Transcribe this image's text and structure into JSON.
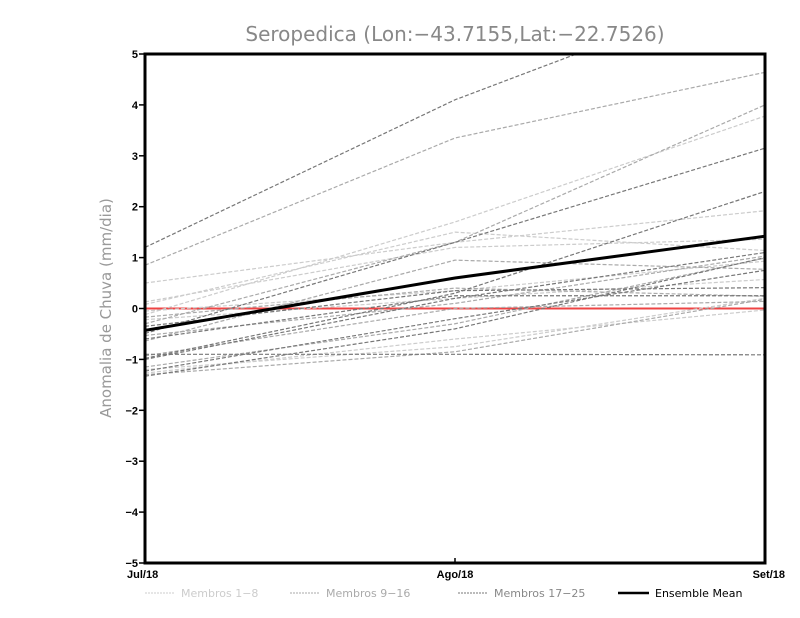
{
  "chart_data": {
    "type": "line",
    "title": "Seropedica (Lon:−43.7155,Lat:−22.7526)",
    "xlabel": "",
    "ylabel": "Anomalia de Chuva (mm/dia)",
    "categories": [
      "Jul/18",
      "Ago/18",
      "Set/18"
    ],
    "ylim": [
      -5,
      5
    ],
    "yticks": [
      "−5",
      "−4",
      "−3",
      "−2",
      "−1",
      "0",
      "1",
      "2",
      "3",
      "4",
      "5"
    ],
    "ytick_values": [
      -5,
      -4,
      -3,
      -2,
      -1,
      0,
      1,
      2,
      3,
      4,
      5
    ],
    "reference_line": {
      "value": 0,
      "color": "#ee4444"
    },
    "groups": [
      {
        "name": "Membros 1−8",
        "color": "#cccccc"
      },
      {
        "name": "Membros 9−16",
        "color": "#aaaaaa"
      },
      {
        "name": "Membros 17−25",
        "color": "#777777"
      }
    ],
    "series": [
      {
        "member": 1,
        "group": 0,
        "values": [
          -0.12,
          1.7,
          3.78
        ]
      },
      {
        "member": 2,
        "group": 0,
        "values": [
          0.5,
          1.3,
          1.92
        ]
      },
      {
        "member": 3,
        "group": 0,
        "values": [
          0.08,
          1.5,
          1.14
        ]
      },
      {
        "member": 4,
        "group": 0,
        "values": [
          -1.2,
          -0.75,
          0.2
        ]
      },
      {
        "member": 5,
        "group": 0,
        "values": [
          -1.27,
          -0.6,
          -0.03
        ]
      },
      {
        "member": 6,
        "group": 0,
        "values": [
          0.13,
          1.2,
          1.36
        ]
      },
      {
        "member": 7,
        "group": 0,
        "values": [
          -0.22,
          0.2,
          0.57
        ]
      },
      {
        "member": 8,
        "group": 0,
        "values": [
          -0.05,
          0.35,
          0.93
        ]
      },
      {
        "member": 9,
        "group": 1,
        "values": [
          0.85,
          3.35,
          4.64
        ]
      },
      {
        "member": 10,
        "group": 1,
        "values": [
          -0.3,
          1.3,
          4.0
        ]
      },
      {
        "member": 11,
        "group": 1,
        "values": [
          -0.64,
          0.95,
          0.77
        ]
      },
      {
        "member": 12,
        "group": 1,
        "values": [
          -0.17,
          0.4,
          0.24
        ]
      },
      {
        "member": 13,
        "group": 1,
        "values": [
          -1.15,
          -0.3,
          0.99
        ]
      },
      {
        "member": 14,
        "group": 1,
        "values": [
          -0.53,
          0.1,
          1.03
        ]
      },
      {
        "member": 15,
        "group": 1,
        "values": [
          -0.93,
          0.0,
          0.14
        ]
      },
      {
        "member": 16,
        "group": 1,
        "values": [
          -1.3,
          -0.85,
          0.18
        ]
      },
      {
        "member": 17,
        "group": 2,
        "values": [
          1.2,
          4.1,
          6.4
        ]
      },
      {
        "member": 18,
        "group": 2,
        "values": [
          -0.49,
          1.3,
          3.15
        ]
      },
      {
        "member": 19,
        "group": 2,
        "values": [
          -0.9,
          -0.9,
          -0.91
        ]
      },
      {
        "member": 20,
        "group": 2,
        "values": [
          -0.98,
          0.3,
          2.3
        ]
      },
      {
        "member": 21,
        "group": 2,
        "values": [
          -1.33,
          -0.4,
          1.0
        ]
      },
      {
        "member": 22,
        "group": 2,
        "values": [
          -0.35,
          0.35,
          0.41
        ]
      },
      {
        "member": 23,
        "group": 2,
        "values": [
          -1.23,
          -0.2,
          0.75
        ]
      },
      {
        "member": 24,
        "group": 2,
        "values": [
          -0.6,
          0.25,
          0.25
        ]
      },
      {
        "member": 25,
        "group": 2,
        "values": [
          -1.0,
          0.2,
          1.1
        ]
      }
    ],
    "ensemble_mean": {
      "name": "Ensemble Mean",
      "color": "#000000",
      "values": [
        -0.43,
        0.6,
        1.42
      ]
    },
    "legend_position": "bottom",
    "grid": false
  }
}
